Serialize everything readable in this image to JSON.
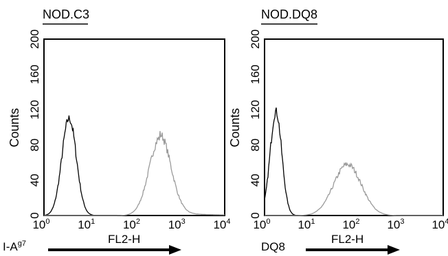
{
  "chart_data": [
    {
      "type": "line",
      "title": "NOD.C3",
      "ylabel": "Counts",
      "xlabel": "FL2-H",
      "marker_label": "I-A",
      "marker_superscript": "g7",
      "x_scale": "log",
      "xlim": [
        1,
        10000
      ],
      "ylim": [
        0,
        200
      ],
      "yticks": [
        "0",
        "40",
        "80",
        "120",
        "160",
        "200"
      ],
      "xticks": [
        {
          "base": "10",
          "exp": "0"
        },
        {
          "base": "10",
          "exp": "1"
        },
        {
          "base": "10",
          "exp": "2"
        },
        {
          "base": "10",
          "exp": "3"
        },
        {
          "base": "10",
          "exp": "4"
        }
      ],
      "grid": false,
      "series": [
        {
          "color": "#000000",
          "peak_x": 3.6,
          "peak_y": 110,
          "width": 0.16
        },
        {
          "color": "#9a9a9a",
          "peak_x": 370,
          "peak_y": 88,
          "width": 0.24,
          "tail": 4
        }
      ]
    },
    {
      "type": "line",
      "title": "NOD.DQ8",
      "ylabel": "Counts",
      "xlabel": "FL2-H",
      "marker_label": "DQ8",
      "marker_superscript": "",
      "x_scale": "log",
      "xlim": [
        1,
        10000
      ],
      "ylim": [
        0,
        200
      ],
      "yticks": [
        "0",
        "40",
        "80",
        "120",
        "160",
        "200"
      ],
      "xticks": [
        {
          "base": "10",
          "exp": "0"
        },
        {
          "base": "10",
          "exp": "1"
        },
        {
          "base": "10",
          "exp": "2"
        },
        {
          "base": "10",
          "exp": "3"
        },
        {
          "base": "10",
          "exp": "4"
        }
      ],
      "grid": false,
      "series": [
        {
          "color": "#000000",
          "peak_x": 1.8,
          "peak_y": 118,
          "width": 0.13
        },
        {
          "color": "#9a9a9a",
          "peak_x": 72,
          "peak_y": 58,
          "width": 0.31,
          "tail": 0
        }
      ]
    }
  ]
}
